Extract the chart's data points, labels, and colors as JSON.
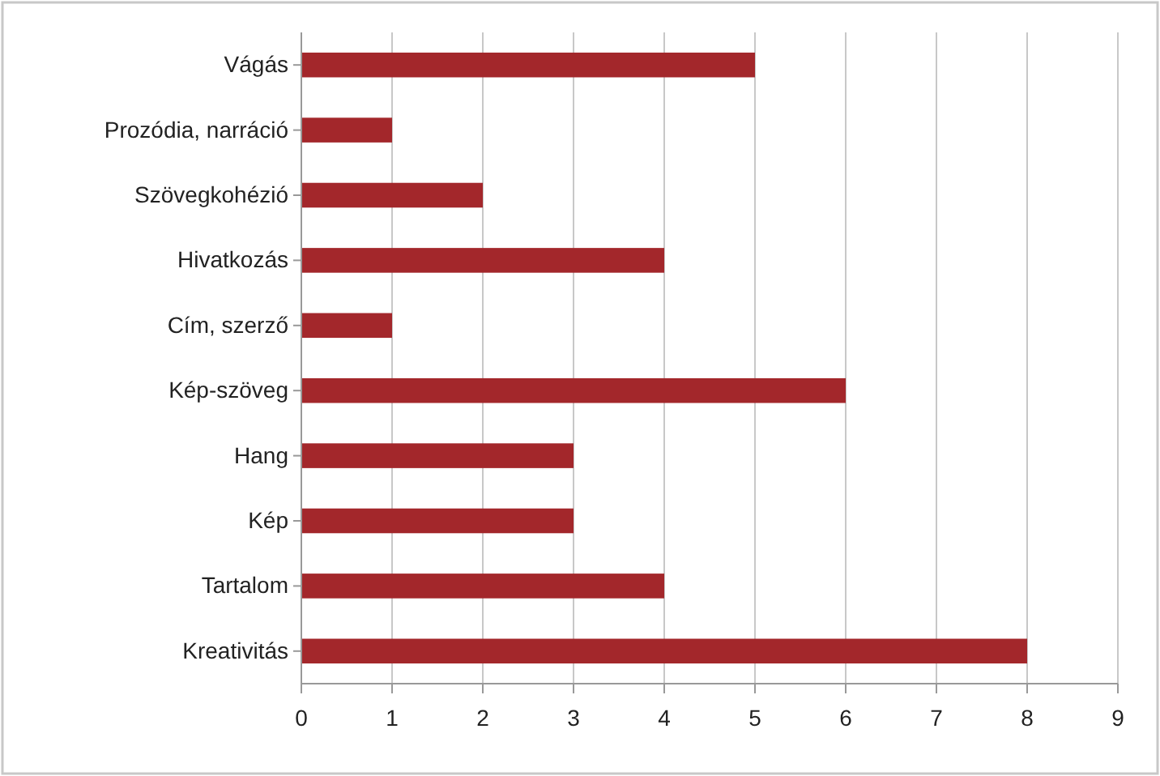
{
  "chart_data": {
    "type": "bar",
    "orientation": "horizontal",
    "categories": [
      "Vágás",
      "Prozódia, narráció",
      "Szövegkohézió",
      "Hivatkozás",
      "Cím, szerző",
      "Kép-szöveg",
      "Hang",
      "Kép",
      "Tartalom",
      "Kreativitás"
    ],
    "values": [
      5,
      1,
      2,
      4,
      1,
      6,
      3,
      3,
      4,
      8
    ],
    "color": "#a3272b",
    "xlim": [
      0,
      9
    ],
    "xticks": [
      0,
      1,
      2,
      3,
      4,
      5,
      6,
      7,
      8,
      9
    ],
    "grid": "x"
  }
}
